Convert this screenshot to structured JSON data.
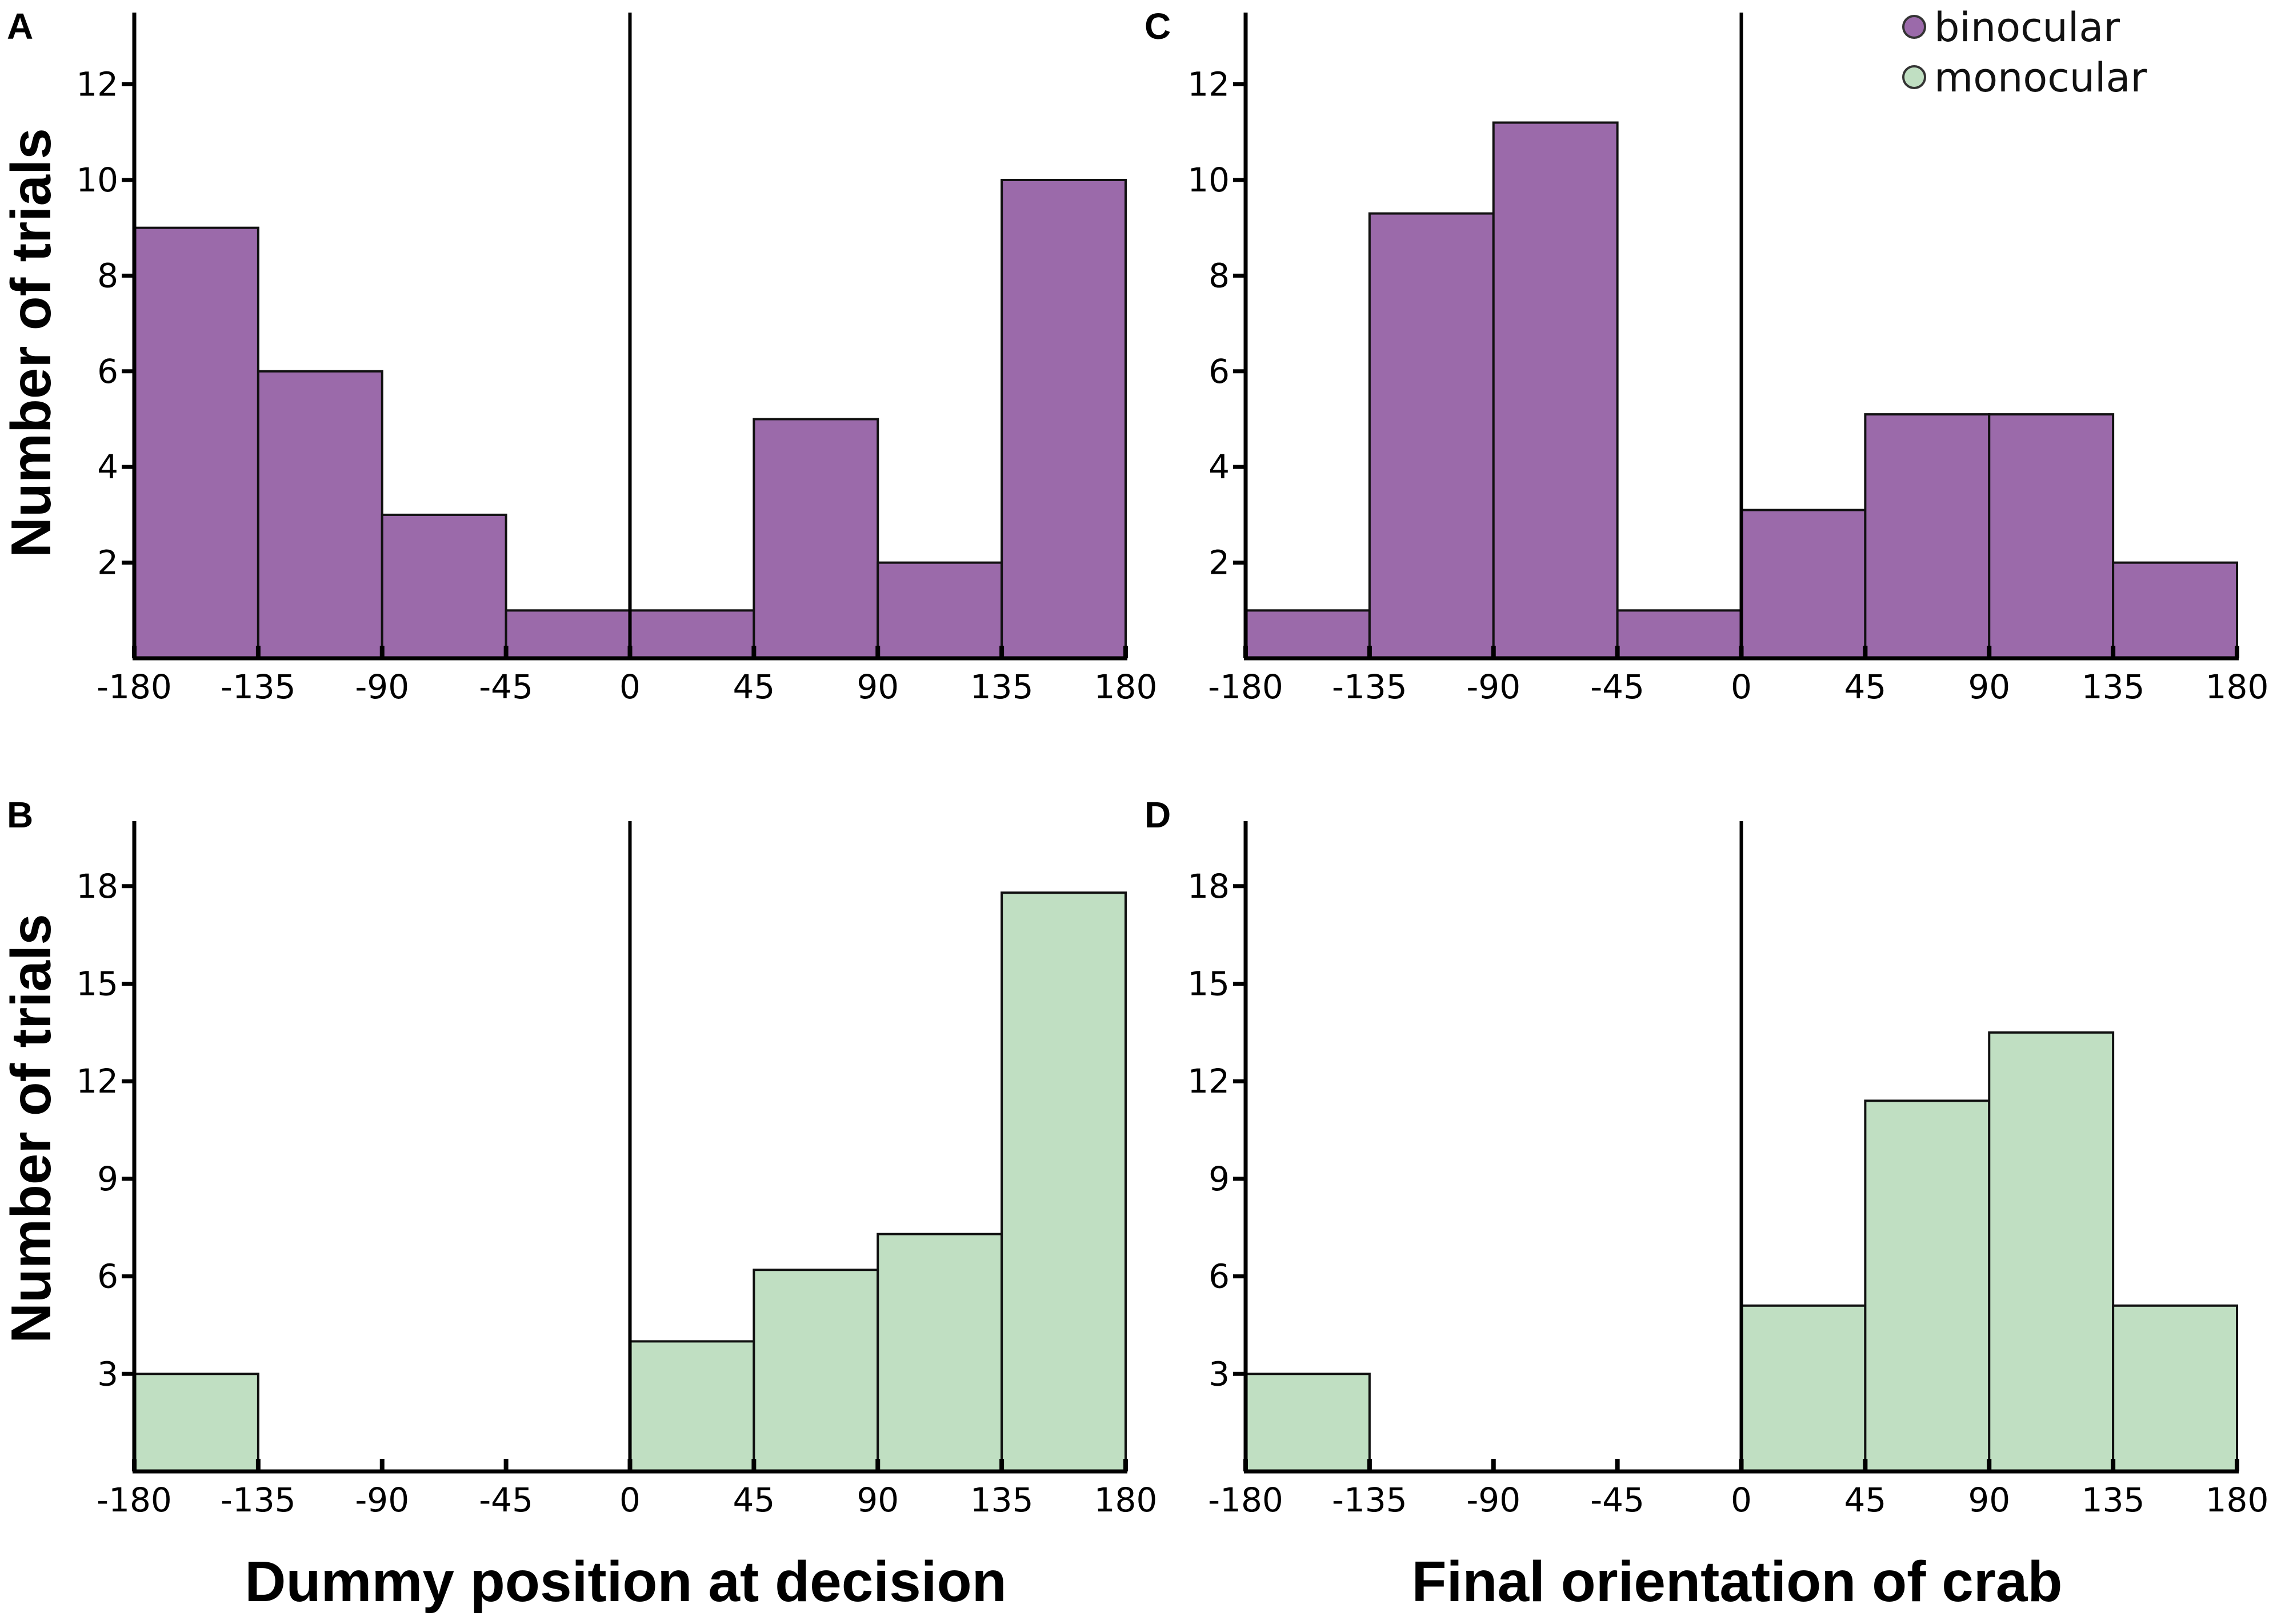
{
  "legend": [
    {
      "label": "binocular",
      "color": "#9b6aaa"
    },
    {
      "label": "monocular",
      "color": "#c0dfc2"
    }
  ],
  "ylabel": "Number of trials",
  "x_titles": {
    "left": "Dummy position at decision",
    "right": "Final orientation of crab"
  },
  "chart_data": [
    {
      "panel": "A",
      "type": "bar",
      "series": "binocular",
      "color": "#9b6aaa",
      "xlabel": "Dummy position at decision",
      "ylabel": "Number of trials",
      "bin_edges": [
        -180,
        -135,
        -90,
        -45,
        0,
        45,
        90,
        135,
        180
      ],
      "values": [
        9,
        6,
        3,
        1,
        1,
        5,
        2,
        10
      ],
      "xticks": [
        "-180",
        "-135",
        "-90",
        "-45",
        "0",
        "45",
        "90",
        "135",
        "180"
      ],
      "yticks": [
        "2",
        "4",
        "6",
        "8",
        "10",
        "12"
      ],
      "ylim": [
        0,
        13.5
      ]
    },
    {
      "panel": "B",
      "type": "bar",
      "series": "monocular",
      "color": "#c0dfc2",
      "xlabel": "Dummy position at decision",
      "ylabel": "Number of trials",
      "bin_edges": [
        -180,
        -135,
        -90,
        -45,
        0,
        45,
        90,
        135,
        180
      ],
      "values": [
        3,
        0,
        0,
        0,
        4,
        6.2,
        7.3,
        17.8
      ],
      "xticks": [
        "-180",
        "-135",
        "-90",
        "-45",
        "0",
        "45",
        "90",
        "135",
        "180"
      ],
      "yticks": [
        "3",
        "6",
        "9",
        "12",
        "15",
        "18"
      ],
      "ylim": [
        0,
        20
      ]
    },
    {
      "panel": "C",
      "type": "bar",
      "series": "binocular",
      "color": "#9b6aaa",
      "xlabel": "Final orientation of crab",
      "ylabel": "Number of trials",
      "bin_edges": [
        -180,
        -135,
        -90,
        -45,
        0,
        45,
        90,
        135,
        180
      ],
      "values": [
        1,
        9.3,
        11.2,
        1,
        3.1,
        5.1,
        5.1,
        2
      ],
      "xticks": [
        "-180",
        "-135",
        "-90",
        "-45",
        "0",
        "45",
        "90",
        "135",
        "180"
      ],
      "yticks": [
        "2",
        "4",
        "6",
        "8",
        "10",
        "12"
      ],
      "ylim": [
        0,
        13.5
      ]
    },
    {
      "panel": "D",
      "type": "bar",
      "series": "monocular",
      "color": "#c0dfc2",
      "xlabel": "Final orientation of crab",
      "ylabel": "Number of trials",
      "bin_edges": [
        -180,
        -135,
        -90,
        -45,
        0,
        45,
        90,
        135,
        180
      ],
      "values": [
        3,
        0,
        0,
        0,
        5.1,
        11.4,
        13.5,
        5.1
      ],
      "xticks": [
        "-180",
        "-135",
        "-90",
        "-45",
        "0",
        "45",
        "90",
        "135",
        "180"
      ],
      "yticks": [
        "3",
        "6",
        "9",
        "12",
        "15",
        "18"
      ],
      "ylim": [
        0,
        20
      ]
    }
  ]
}
